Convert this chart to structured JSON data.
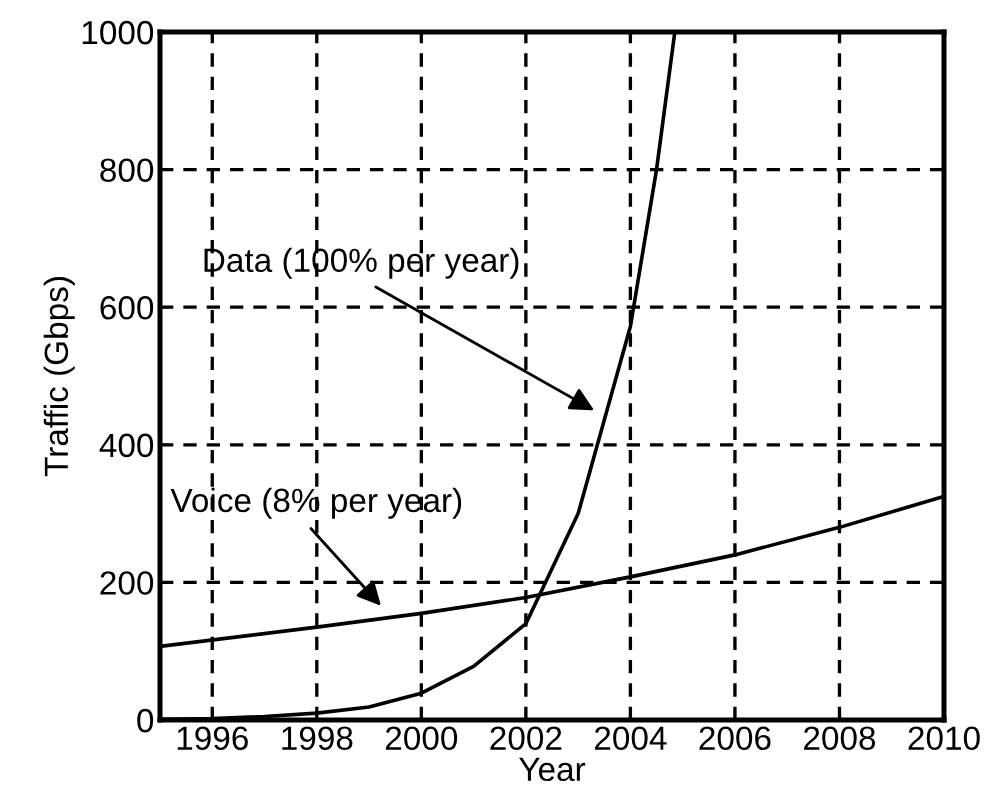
{
  "chart_data": {
    "type": "line",
    "xlabel": "Year",
    "ylabel": "Traffic (Gbps)",
    "xlim": [
      1995,
      2010
    ],
    "ylim": [
      0,
      1000
    ],
    "xticks": [
      1996,
      1998,
      2000,
      2002,
      2004,
      2006,
      2008,
      2010
    ],
    "yticks": [
      0,
      200,
      400,
      600,
      800,
      1000
    ],
    "grid": true,
    "line_style": "solid",
    "marker": "none",
    "series": [
      {
        "color": "#000000",
        "x": [
          1995,
          1996,
          1997,
          1998,
          1999,
          2000,
          2001,
          2002,
          2003,
          2004,
          2004.5,
          2004.85
        ],
        "values": [
          1,
          2,
          5,
          10,
          19,
          39,
          78,
          140,
          300,
          572,
          800,
          1000
        ]
      },
      {
        "color": "#000000",
        "x": [
          1995,
          1998,
          2000,
          2002,
          2004,
          2006,
          2008,
          2010
        ],
        "values": [
          107,
          135,
          155,
          178,
          208,
          240,
          280,
          325
        ]
      }
    ],
    "annotations": [
      {
        "text": "Data (100% per year)",
        "x": 2003.4,
        "y": 446
      },
      {
        "text": "Voice (8% per year)",
        "x": 1999.3,
        "y": 160
      }
    ]
  }
}
